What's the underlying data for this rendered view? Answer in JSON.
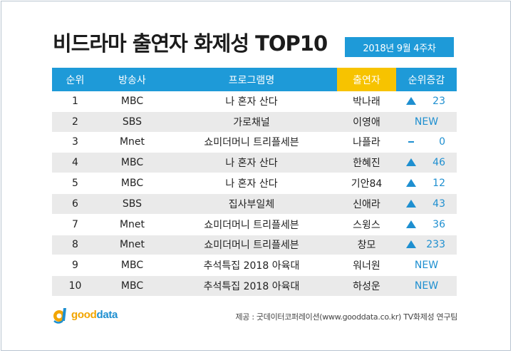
{
  "title": "비드라마 출연자 화제성 TOP10",
  "week": "2018년  9월 4주차",
  "headers": {
    "rank": "순위",
    "channel": "방송사",
    "program": "프로그램명",
    "performer": "출연자",
    "change": "순위증감"
  },
  "rows": [
    {
      "rank": "1",
      "channel": "MBC",
      "program": "나 혼자 산다",
      "performer": "박나래",
      "change_type": "up",
      "change": "23"
    },
    {
      "rank": "2",
      "channel": "SBS",
      "program": "가로채널",
      "performer": "이영애",
      "change_type": "new",
      "change": "NEW"
    },
    {
      "rank": "3",
      "channel": "Mnet",
      "program": "쇼미더머니 트리플세븐",
      "performer": "나플라",
      "change_type": "same",
      "change": "0"
    },
    {
      "rank": "4",
      "channel": "MBC",
      "program": "나 혼자 산다",
      "performer": "한혜진",
      "change_type": "up",
      "change": "46"
    },
    {
      "rank": "5",
      "channel": "MBC",
      "program": "나 혼자 산다",
      "performer": "기안84",
      "change_type": "up",
      "change": "12"
    },
    {
      "rank": "6",
      "channel": "SBS",
      "program": "집사부일체",
      "performer": "신애라",
      "change_type": "up",
      "change": "43"
    },
    {
      "rank": "7",
      "channel": "Mnet",
      "program": "쇼미더머니 트리플세븐",
      "performer": "스윙스",
      "change_type": "up",
      "change": "36"
    },
    {
      "rank": "8",
      "channel": "Mnet",
      "program": "쇼미더머니 트리플세븐",
      "performer": "창모",
      "change_type": "up",
      "change": "233"
    },
    {
      "rank": "9",
      "channel": "MBC",
      "program": "추석특집 2018 아육대",
      "performer": "워너원",
      "change_type": "new",
      "change": "NEW"
    },
    {
      "rank": "10",
      "channel": "MBC",
      "program": "추석특집 2018 아육대",
      "performer": "하성운",
      "change_type": "new",
      "change": "NEW"
    }
  ],
  "logo": {
    "part1": "good",
    "part2": "data",
    "icon": "gooddata-logo-icon"
  },
  "source": "제공 : 굿데이터코퍼레이션(www.gooddata.co.kr) TV화제성 연구팀",
  "colors": {
    "header_blue": "#1e9ad8",
    "header_yellow": "#f7c300",
    "accent": "#1e8fd0",
    "row_alt": "#eaeaea"
  }
}
